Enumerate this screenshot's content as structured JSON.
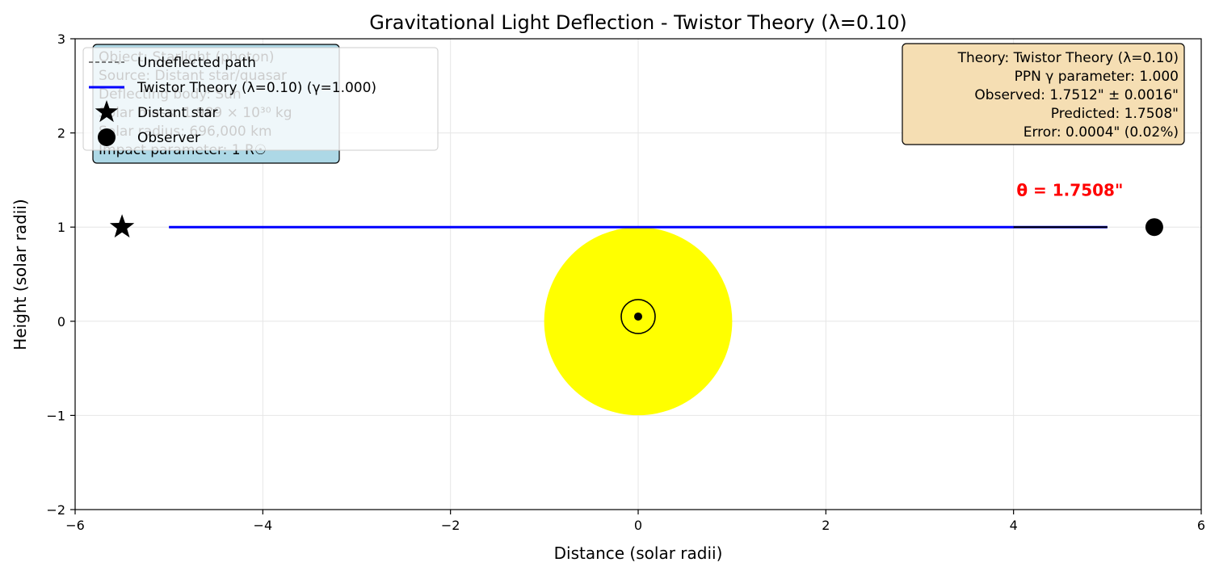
{
  "chart_data": {
    "type": "line",
    "title": "Gravitational Light Deflection - Twistor Theory (λ=0.10)",
    "xlabel": "Distance (solar radii)",
    "ylabel": "Height (solar radii)",
    "xlim": [
      -6,
      6
    ],
    "ylim": [
      -2,
      3
    ],
    "xticks": [
      -6,
      -4,
      -2,
      0,
      2,
      4,
      6
    ],
    "xtick_labels": [
      "−6",
      "−4",
      "−2",
      "0",
      "2",
      "4",
      "6"
    ],
    "yticks": [
      -2,
      -1,
      0,
      1,
      2,
      3
    ],
    "ytick_labels": [
      "−2",
      "−1",
      "0",
      "1",
      "2",
      "3"
    ],
    "grid": true,
    "legend_position": "top-left",
    "colors": {
      "deflected_path": "#0000ff",
      "undeflected_path": "#555555",
      "sun": "#ffff00",
      "angle_label": "#ff0000",
      "info_box_left": "#add8e6",
      "info_box_right": "#f5deb3"
    },
    "series": [
      {
        "name": "Undeflected path",
        "style": "dashed",
        "x": [
          -5,
          5
        ],
        "y": [
          1,
          1
        ]
      },
      {
        "name": "Twistor Theory (λ=0.10) (γ=1.000)",
        "style": "solid",
        "x": [
          -5,
          5
        ],
        "y": [
          1,
          1
        ]
      }
    ],
    "observer_segment": {
      "x": [
        4,
        5
      ],
      "y": [
        1,
        1
      ]
    },
    "markers": [
      {
        "name": "Distant star",
        "marker": "star",
        "x": -5.5,
        "y": 1
      },
      {
        "name": "Observer",
        "marker": "circle",
        "x": 5.5,
        "y": 1
      }
    ],
    "sun": {
      "center": [
        0,
        0
      ],
      "radius": 1,
      "symbol_center": [
        0,
        0.05
      ]
    },
    "angle_annotation": {
      "text": "θ = 1.7508\"",
      "x": 4.6,
      "y": 1.35
    },
    "legend": [
      {
        "label": "Undeflected path",
        "marker": "dashed-line"
      },
      {
        "label": "Twistor Theory (λ=0.10) (γ=1.000)",
        "marker": "solid-line"
      },
      {
        "label": "Distant star",
        "marker": "star"
      },
      {
        "label": "Observer",
        "marker": "circle"
      }
    ],
    "info_box_left": [
      "Object: Starlight (photon)",
      "Source: Distant star/quasar",
      "Deflecting body: Sun",
      "Solar mass: 1.989 × 10³⁰ kg",
      "Solar radius: 696,000 km",
      "Impact parameter: 1 R☉"
    ],
    "info_box_right": [
      "Theory: Twistor Theory (λ=0.10)",
      "PPN γ parameter: 1.000",
      "Observed: 1.7512\" ± 0.0016\"",
      "Predicted: 1.7508\"",
      "Error: 0.0004\" (0.02%)"
    ]
  }
}
